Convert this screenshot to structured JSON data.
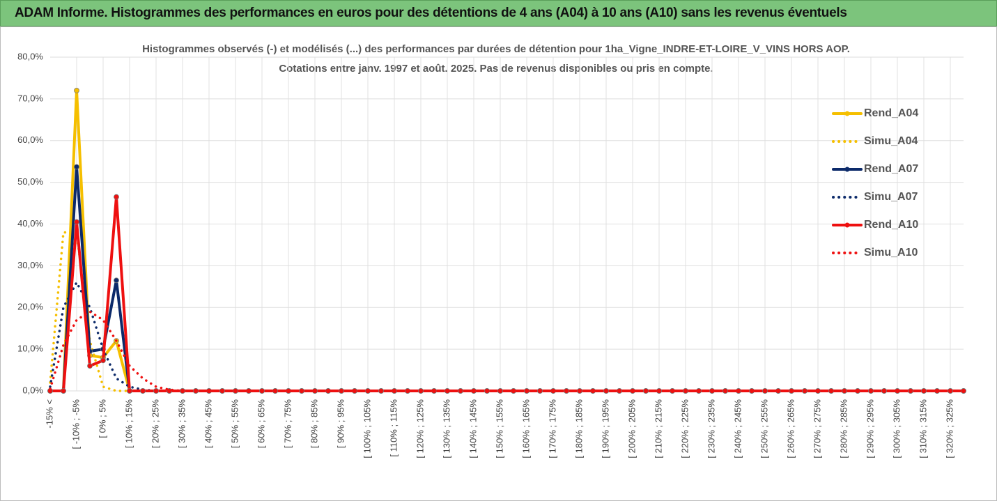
{
  "chart_data": {
    "type": "line",
    "header": "ADAM Informe. Histogrammes des performances en euros pour des détentions de 4 ans (A04) à 10 ans (A10) sans les revenus éventuels",
    "title": [
      "Histogrammes observés (-) et modélisés (...) des performances par durées de détention pour 1ha_Vigne_INDRE-ET-LOIRE_V_VINS HORS AOP.",
      "Cotations entre janv. 1997 et août. 2025. Pas de revenus disponibles ou pris en compte."
    ],
    "categories": [
      "-15% <",
      null,
      "[ -10% ; -5%",
      null,
      "[ 0% ; 5%",
      null,
      "[ 10% ; 15%",
      null,
      "[ 20% ; 25%",
      null,
      "[ 30% ; 35%",
      null,
      "[ 40% ; 45%",
      null,
      "[ 50% ; 55%",
      null,
      "[ 60% ; 65%",
      null,
      "[ 70% ; 75%",
      null,
      "[ 80% ; 85%",
      null,
      "[ 90% ; 95%",
      null,
      "[ 100% ; 105%",
      null,
      "[ 110% ; 115%",
      null,
      "[ 120% ; 125%",
      null,
      "[ 130% ; 135%",
      null,
      "[ 140% ; 145%",
      null,
      "[ 150% ; 155%",
      null,
      "[ 160% ; 165%",
      null,
      "[ 170% ; 175%",
      null,
      "[ 180% ; 185%",
      null,
      "[ 190% ; 195%",
      null,
      "[ 200% ; 205%",
      null,
      "[ 210% ; 215%",
      null,
      "[ 220% ; 225%",
      null,
      "[ 230% ; 235%",
      null,
      "[ 240% ; 245%",
      null,
      "[ 250% ; 255%",
      null,
      "[ 260% ; 265%",
      null,
      "[ 270% ; 275%",
      null,
      "[ 280% ; 285%",
      null,
      "[ 290% ; 295%",
      null,
      "[ 300% ; 305%",
      null,
      "[ 310% ; 315%",
      null,
      "[ 320% ; 325%",
      null
    ],
    "series": [
      {
        "name": "Rend_A04",
        "color": "#f5bf00",
        "line_style": "solid",
        "markers": true,
        "values": [
          0,
          0,
          72,
          8.5,
          8,
          12,
          0,
          0,
          0,
          0,
          0,
          0,
          0,
          0,
          0,
          0,
          0,
          0,
          0,
          0,
          0,
          0,
          0,
          0,
          0,
          0,
          0,
          0,
          0,
          0,
          0,
          0,
          0,
          0,
          0,
          0,
          0,
          0,
          0,
          0,
          0,
          0,
          0,
          0,
          0,
          0,
          0,
          0,
          0,
          0,
          0,
          0,
          0,
          0,
          0,
          0,
          0,
          0,
          0,
          0,
          0,
          0,
          0,
          0,
          0,
          0,
          0,
          0,
          0,
          0
        ]
      },
      {
        "name": "Simu_A04",
        "color": "#f5bf00",
        "line_style": "dotted",
        "markers": false,
        "values": [
          2,
          38,
          38,
          12,
          1,
          0,
          0,
          0,
          0,
          0,
          0,
          0,
          0,
          0,
          0,
          0,
          0,
          0,
          0,
          0,
          0,
          0,
          0,
          0,
          0,
          0,
          0,
          0,
          0,
          0,
          0,
          0,
          0,
          0,
          0,
          0,
          0,
          0,
          0,
          0,
          0,
          0,
          0,
          0,
          0,
          0,
          0,
          0,
          0,
          0,
          0,
          0,
          0,
          0,
          0,
          0,
          0,
          0,
          0,
          0,
          0,
          0,
          0,
          0,
          0,
          0,
          0,
          0,
          0,
          0
        ]
      },
      {
        "name": "Rend_A07",
        "color": "#0c2a6a",
        "line_style": "solid",
        "markers": true,
        "values": [
          0,
          0,
          53.7,
          9.5,
          10,
          26.5,
          0,
          0,
          0,
          0,
          0,
          0,
          0,
          0,
          0,
          0,
          0,
          0,
          0,
          0,
          0,
          0,
          0,
          0,
          0,
          0,
          0,
          0,
          0,
          0,
          0,
          0,
          0,
          0,
          0,
          0,
          0,
          0,
          0,
          0,
          0,
          0,
          0,
          0,
          0,
          0,
          0,
          0,
          0,
          0,
          0,
          0,
          0,
          0,
          0,
          0,
          0,
          0,
          0,
          0,
          0,
          0,
          0,
          0,
          0,
          0,
          0,
          0,
          0,
          0
        ]
      },
      {
        "name": "Simu_A07",
        "color": "#0c2a6a",
        "line_style": "dotted",
        "markers": false,
        "values": [
          1,
          20,
          26,
          20,
          10,
          3,
          1,
          0.3,
          0,
          0,
          0,
          0,
          0,
          0,
          0,
          0,
          0,
          0,
          0,
          0,
          0,
          0,
          0,
          0,
          0,
          0,
          0,
          0,
          0,
          0,
          0,
          0,
          0,
          0,
          0,
          0,
          0,
          0,
          0,
          0,
          0,
          0,
          0,
          0,
          0,
          0,
          0,
          0,
          0,
          0,
          0,
          0,
          0,
          0,
          0,
          0,
          0,
          0,
          0,
          0,
          0,
          0,
          0,
          0,
          0,
          0,
          0,
          0,
          0,
          0
        ]
      },
      {
        "name": "Rend_A10",
        "color": "#ee1010",
        "line_style": "solid",
        "markers": true,
        "values": [
          0,
          0,
          40.5,
          6,
          7.3,
          46.5,
          0,
          0,
          0,
          0,
          0,
          0,
          0,
          0,
          0,
          0,
          0,
          0,
          0,
          0,
          0,
          0,
          0,
          0,
          0,
          0,
          0,
          0,
          0,
          0,
          0,
          0,
          0,
          0,
          0,
          0,
          0,
          0,
          0,
          0,
          0,
          0,
          0,
          0,
          0,
          0,
          0,
          0,
          0,
          0,
          0,
          0,
          0,
          0,
          0,
          0,
          0,
          0,
          0,
          0,
          0,
          0,
          0,
          0,
          0,
          0,
          0,
          0,
          0,
          0
        ]
      },
      {
        "name": "Simu_A10",
        "color": "#ee1010",
        "line_style": "dotted",
        "markers": false,
        "values": [
          0.5,
          11,
          17,
          19,
          17,
          12,
          6,
          3,
          1,
          0.3,
          0,
          0,
          0,
          0,
          0,
          0,
          0,
          0,
          0,
          0,
          0,
          0,
          0,
          0,
          0,
          0,
          0,
          0,
          0,
          0,
          0,
          0,
          0,
          0,
          0,
          0,
          0,
          0,
          0,
          0,
          0,
          0,
          0,
          0,
          0,
          0,
          0,
          0,
          0,
          0,
          0,
          0,
          0,
          0,
          0,
          0,
          0,
          0,
          0,
          0,
          0,
          0,
          0,
          0,
          0,
          0,
          0,
          0,
          0,
          0
        ]
      }
    ],
    "ylim": [
      0,
      80
    ],
    "yticks": [
      {
        "value": 0,
        "label": "0,0%"
      },
      {
        "value": 10,
        "label": "10,0%"
      },
      {
        "value": 20,
        "label": "20,0%"
      },
      {
        "value": 30,
        "label": "30,0%"
      },
      {
        "value": 40,
        "label": "40,0%"
      },
      {
        "value": 50,
        "label": "50,0%"
      },
      {
        "value": 60,
        "label": "60,0%"
      },
      {
        "value": 70,
        "label": "70,0%"
      },
      {
        "value": 80,
        "label": "80,0%"
      }
    ],
    "grid": true,
    "legend": "right"
  }
}
